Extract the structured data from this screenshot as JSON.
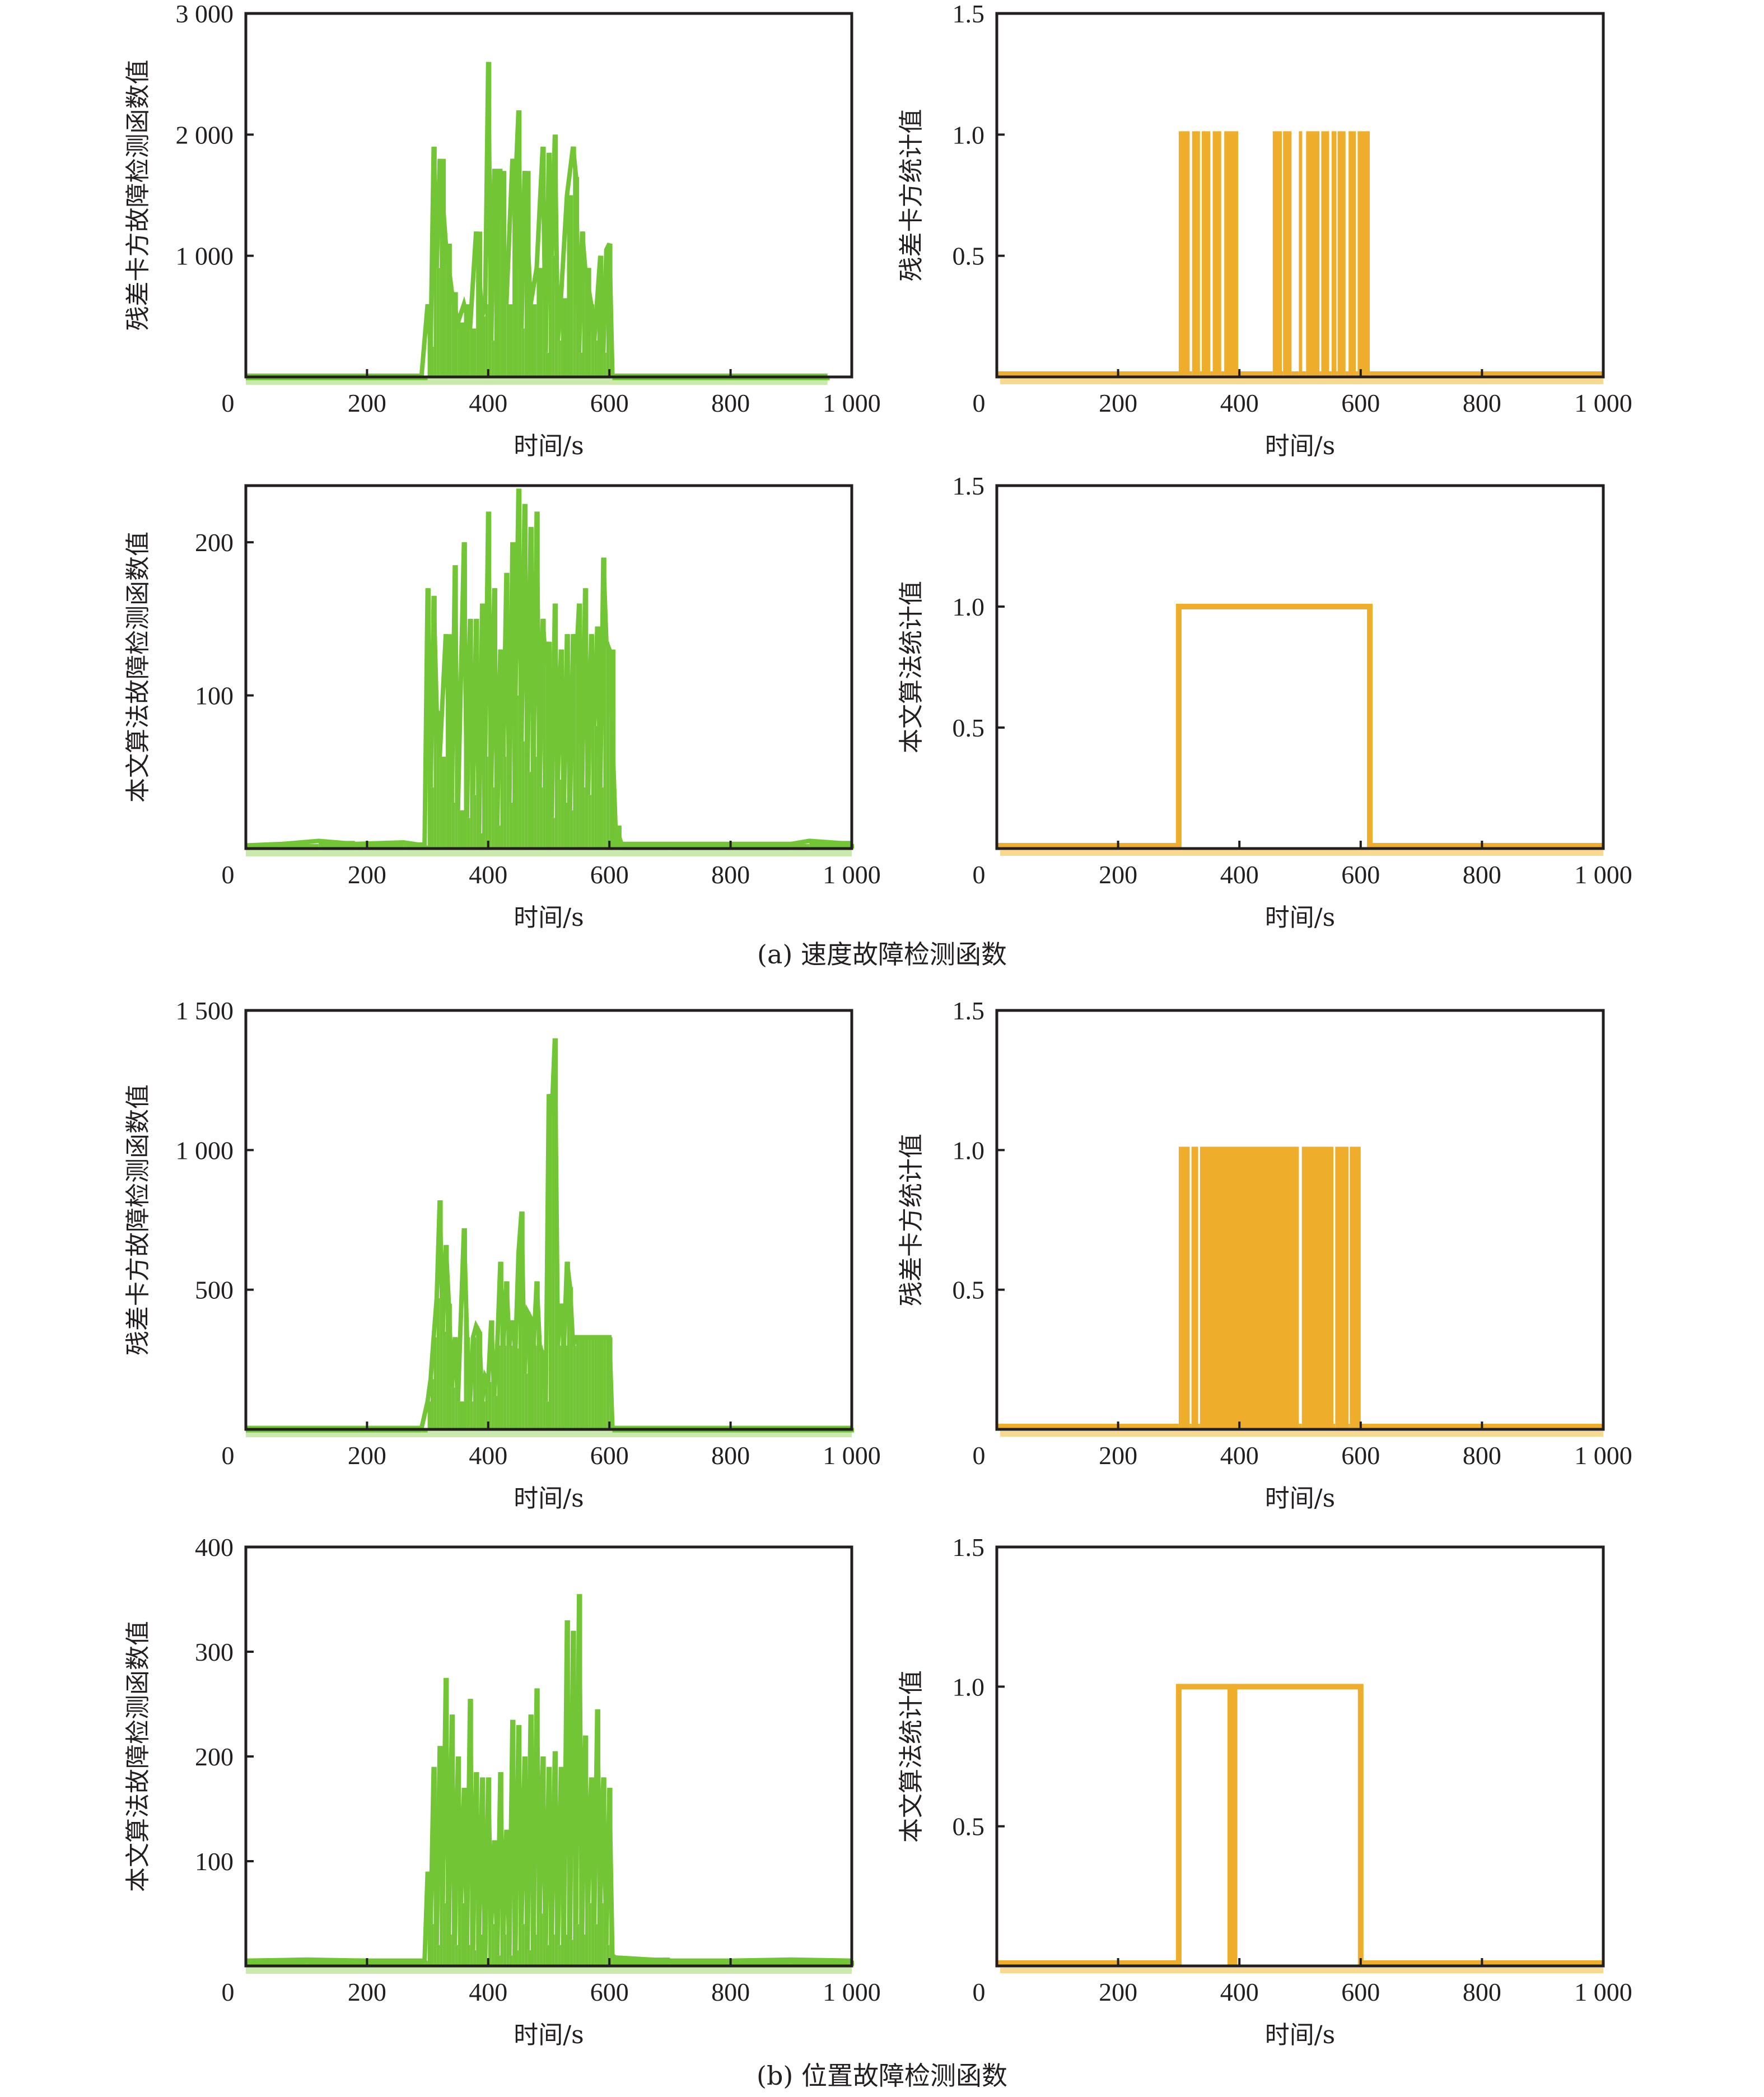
{
  "figure": {
    "captions": [
      "(a) 速度故障检测函数",
      "(b) 位置故障检测函数"
    ],
    "colors": {
      "green": "#72c534",
      "green_light": "#c9e9ad",
      "orange": "#eeae2b",
      "orange_light": "#f8d98e",
      "axis": "#231f20"
    }
  },
  "chart_data": [
    {
      "id": "a-chi2-func",
      "group": "(a) 速度故障检测函数",
      "type": "line",
      "title": "",
      "xlabel": "时间/s",
      "ylabel": "残差卡方故障检测函数值",
      "xlim": [
        0,
        1000
      ],
      "ylim": [
        0,
        3000
      ],
      "xticks": [
        0,
        200,
        400,
        600,
        800,
        1000
      ],
      "xtick_labels": [
        "0",
        "200",
        "400",
        "600",
        "800",
        "1 000"
      ],
      "yticks": [
        0,
        1000,
        2000,
        3000
      ],
      "ytick_labels": [
        "0",
        "1 000",
        "2 000",
        "3 000"
      ],
      "color": "#72c534",
      "grid": false,
      "legend": "none",
      "series": [
        {
          "name": "残差卡方故障检测函数值",
          "x": [
            0,
            290,
            300,
            305,
            310,
            315,
            320,
            330,
            340,
            350,
            360,
            370,
            380,
            390,
            395,
            400,
            405,
            410,
            420,
            430,
            440,
            445,
            450,
            455,
            460,
            470,
            480,
            490,
            495,
            500,
            505,
            510,
            515,
            520,
            530,
            540,
            545,
            550,
            555,
            560,
            570,
            575,
            580,
            585,
            590,
            595,
            600,
            605,
            610,
            960
          ],
          "y": [
            10,
            10,
            600,
            250,
            1900,
            900,
            1800,
            1100,
            700,
            450,
            600,
            400,
            1200,
            500,
            600,
            2600,
            300,
            1700,
            1700,
            600,
            1800,
            1600,
            2200,
            400,
            1700,
            600,
            900,
            1900,
            200,
            1850,
            1000,
            2000,
            300,
            650,
            1500,
            1900,
            1650,
            200,
            1200,
            900,
            600,
            300,
            650,
            1000,
            200,
            1050,
            1100,
            10,
            10,
            10
          ]
        }
      ]
    },
    {
      "id": "a-chi2-stat",
      "group": "(a) 速度故障检测函数",
      "type": "line",
      "title": "",
      "xlabel": "时间/s",
      "ylabel": "残差卡方统计值",
      "xlim": [
        0,
        1000
      ],
      "ylim": [
        0,
        1.5
      ],
      "xticks": [
        0,
        200,
        400,
        600,
        800,
        1000
      ],
      "xtick_labels": [
        "0",
        "200",
        "400",
        "600",
        "800",
        "1 000"
      ],
      "yticks": [
        0.5,
        1.0,
        1.5
      ],
      "ytick_labels": [
        "0.5",
        "1.0",
        "1.5"
      ],
      "color": "#eeae2b",
      "grid": false,
      "legend": "none",
      "alarm_intervals": [
        [
          300,
          318
        ],
        [
          322,
          335
        ],
        [
          338,
          352
        ],
        [
          356,
          370
        ],
        [
          375,
          398
        ],
        [
          455,
          470
        ],
        [
          472,
          486
        ],
        [
          498,
          500
        ],
        [
          510,
          532
        ],
        [
          535,
          548
        ],
        [
          552,
          560
        ],
        [
          562,
          575
        ],
        [
          580,
          592
        ],
        [
          595,
          615
        ]
      ],
      "series": [
        {
          "name": "残差卡方统计值",
          "baseline": 0,
          "alarm_value": 1.0
        }
      ]
    },
    {
      "id": "a-proposed-func",
      "group": "(a) 速度故障检测函数",
      "type": "line",
      "title": "",
      "xlabel": "时间/s",
      "ylabel": "本文算法故障检测函数值",
      "xlim": [
        0,
        1000
      ],
      "ylim": [
        0,
        237
      ],
      "xticks": [
        0,
        200,
        400,
        600,
        800,
        1000
      ],
      "xtick_labels": [
        "0",
        "200",
        "400",
        "600",
        "800",
        "1 000"
      ],
      "yticks": [
        100,
        200
      ],
      "ytick_labels": [
        "100",
        "200"
      ],
      "color": "#72c534",
      "grid": false,
      "legend": "none",
      "series": [
        {
          "name": "本文算法故障检测函数值",
          "x": [
            0,
            60,
            120,
            180,
            260,
            295,
            300,
            305,
            310,
            315,
            320,
            330,
            340,
            345,
            350,
            360,
            365,
            370,
            375,
            380,
            385,
            390,
            395,
            400,
            405,
            410,
            415,
            420,
            425,
            430,
            435,
            440,
            445,
            450,
            455,
            460,
            465,
            470,
            475,
            480,
            485,
            490,
            495,
            500,
            505,
            510,
            515,
            520,
            525,
            530,
            535,
            540,
            545,
            550,
            555,
            560,
            565,
            570,
            575,
            580,
            585,
            590,
            595,
            600,
            610,
            620,
            700,
            800,
            900,
            930,
            1000
          ],
          "y": [
            2,
            3,
            5,
            3,
            4,
            2,
            170,
            40,
            165,
            90,
            60,
            140,
            30,
            185,
            25,
            200,
            20,
            150,
            35,
            150,
            10,
            160,
            60,
            220,
            40,
            170,
            15,
            130,
            60,
            180,
            30,
            200,
            100,
            235,
            70,
            225,
            50,
            210,
            60,
            220,
            40,
            150,
            120,
            135,
            20,
            160,
            45,
            130,
            30,
            140,
            25,
            140,
            120,
            160,
            40,
            170,
            35,
            140,
            80,
            145,
            40,
            190,
            135,
            130,
            15,
            3,
            3,
            3,
            3,
            5,
            3
          ]
        }
      ]
    },
    {
      "id": "a-proposed-stat",
      "group": "(a) 速度故障检测函数",
      "type": "line",
      "title": "",
      "xlabel": "时间/s",
      "ylabel": "本文算法统计值",
      "xlim": [
        0,
        1000
      ],
      "ylim": [
        0,
        1.5
      ],
      "xticks": [
        0,
        200,
        400,
        600,
        800,
        1000
      ],
      "xtick_labels": [
        "0",
        "200",
        "400",
        "600",
        "800",
        "1 000"
      ],
      "yticks": [
        0.5,
        1.0,
        1.5
      ],
      "ytick_labels": [
        "0.5",
        "1.0",
        "1.5"
      ],
      "color": "#eeae2b",
      "grid": false,
      "legend": "none",
      "alarm_intervals": [
        [
          300,
          615
        ]
      ],
      "series": [
        {
          "name": "本文算法统计值",
          "baseline": 0,
          "alarm_value": 1.0
        }
      ]
    },
    {
      "id": "b-chi2-func",
      "group": "(b) 位置故障检测函数",
      "type": "line",
      "title": "",
      "xlabel": "时间/s",
      "ylabel": "残差卡方故障检测函数值",
      "xlim": [
        0,
        1000
      ],
      "ylim": [
        0,
        1500
      ],
      "xticks": [
        0,
        200,
        400,
        600,
        800,
        1000
      ],
      "xtick_labels": [
        "0",
        "200",
        "400",
        "600",
        "800",
        "1 000"
      ],
      "yticks": [
        0,
        500,
        1000,
        1500
      ],
      "ytick_labels": [
        "0",
        "500",
        "1 000",
        "1 500"
      ],
      "color": "#72c534",
      "grid": false,
      "legend": "none",
      "series": [
        {
          "name": "残差卡方故障检测函数值",
          "x": [
            0,
            290,
            300,
            305,
            310,
            315,
            320,
            325,
            330,
            335,
            340,
            345,
            350,
            360,
            365,
            370,
            375,
            380,
            385,
            390,
            395,
            400,
            405,
            410,
            415,
            420,
            425,
            430,
            435,
            440,
            445,
            450,
            455,
            460,
            465,
            470,
            475,
            480,
            485,
            490,
            495,
            500,
            505,
            510,
            515,
            520,
            525,
            530,
            535,
            540,
            545,
            550,
            555,
            560,
            565,
            570,
            575,
            580,
            585,
            590,
            595,
            600,
            605,
            1000
          ],
          "y": [
            5,
            5,
            100,
            180,
            330,
            470,
            820,
            350,
            660,
            450,
            150,
            330,
            100,
            720,
            330,
            100,
            330,
            370,
            350,
            100,
            190,
            170,
            390,
            120,
            300,
            600,
            300,
            530,
            300,
            390,
            290,
            630,
            780,
            200,
            420,
            400,
            300,
            530,
            300,
            270,
            100,
            1200,
            1130,
            1400,
            300,
            450,
            300,
            600,
            510,
            300,
            330,
            330,
            330,
            330,
            330,
            330,
            330,
            330,
            330,
            330,
            330,
            330,
            5,
            5
          ]
        }
      ]
    },
    {
      "id": "b-chi2-stat",
      "group": "(b) 位置故障检测函数",
      "type": "line",
      "title": "",
      "xlabel": "时间/s",
      "ylabel": "残差卡方统计值",
      "xlim": [
        0,
        1000
      ],
      "ylim": [
        0,
        1.5
      ],
      "xticks": [
        0,
        200,
        400,
        600,
        800,
        1000
      ],
      "xtick_labels": [
        "0",
        "200",
        "400",
        "600",
        "800",
        "1 000"
      ],
      "yticks": [
        0.5,
        1.0,
        1.5
      ],
      "ytick_labels": [
        "0.5",
        "1.0",
        "1.5"
      ],
      "color": "#eeae2b",
      "grid": false,
      "legend": "none",
      "alarm_intervals": [
        [
          300,
          318
        ],
        [
          321,
          332
        ],
        [
          335,
          498
        ],
        [
          503,
          555
        ],
        [
          558,
          580
        ],
        [
          582,
          600
        ]
      ],
      "series": [
        {
          "name": "残差卡方统计值",
          "baseline": 0,
          "alarm_value": 1.0
        }
      ]
    },
    {
      "id": "b-proposed-func",
      "group": "(b) 位置故障检测函数",
      "type": "line",
      "title": "",
      "xlabel": "时间/s",
      "ylabel": "本文算法故障检测函数值",
      "xlim": [
        0,
        1000
      ],
      "ylim": [
        0,
        400
      ],
      "xticks": [
        0,
        200,
        400,
        600,
        800,
        1000
      ],
      "xtick_labels": [
        "0",
        "200",
        "400",
        "600",
        "800",
        "1 000"
      ],
      "yticks": [
        100,
        200,
        300,
        400
      ],
      "ytick_labels": [
        "100",
        "200",
        "300",
        "400"
      ],
      "color": "#72c534",
      "grid": false,
      "legend": "none",
      "series": [
        {
          "name": "本文算法故障检测函数值",
          "x": [
            0,
            100,
            200,
            295,
            300,
            305,
            310,
            315,
            320,
            325,
            330,
            335,
            340,
            345,
            350,
            355,
            360,
            365,
            370,
            375,
            380,
            385,
            390,
            395,
            400,
            405,
            410,
            415,
            420,
            425,
            430,
            435,
            440,
            445,
            450,
            455,
            460,
            465,
            470,
            475,
            480,
            485,
            490,
            495,
            500,
            505,
            510,
            515,
            520,
            525,
            530,
            535,
            540,
            545,
            550,
            555,
            560,
            565,
            570,
            575,
            580,
            585,
            590,
            595,
            600,
            605,
            610,
            700,
            800,
            900,
            1000
          ],
          "y": [
            5,
            6,
            5,
            5,
            90,
            40,
            190,
            20,
            210,
            60,
            275,
            30,
            240,
            20,
            200,
            60,
            170,
            20,
            255,
            15,
            185,
            30,
            180,
            5,
            180,
            40,
            120,
            10,
            185,
            30,
            130,
            10,
            235,
            15,
            230,
            40,
            200,
            15,
            240,
            30,
            265,
            50,
            200,
            20,
            190,
            30,
            205,
            20,
            190,
            30,
            330,
            25,
            320,
            40,
            355,
            30,
            220,
            60,
            180,
            40,
            245,
            60,
            180,
            20,
            170,
            10,
            8,
            5,
            5,
            6,
            5
          ]
        }
      ]
    },
    {
      "id": "b-proposed-stat",
      "group": "(b) 位置故障检测函数",
      "type": "line",
      "title": "",
      "xlabel": "时间/s",
      "ylabel": "本文算法统计值",
      "xlim": [
        0,
        1000
      ],
      "ylim": [
        0,
        1.5
      ],
      "xticks": [
        0,
        200,
        400,
        600,
        800,
        1000
      ],
      "xtick_labels": [
        "0",
        "200",
        "400",
        "600",
        "800",
        "1 000"
      ],
      "yticks": [
        0.5,
        1.0,
        1.5
      ],
      "ytick_labels": [
        "0.5",
        "1.0",
        "1.5"
      ],
      "color": "#eeae2b",
      "grid": false,
      "legend": "none",
      "alarm_intervals": [
        [
          300,
          385
        ],
        [
          392,
          600
        ]
      ],
      "series": [
        {
          "name": "本文算法统计值",
          "baseline": 0,
          "alarm_value": 1.0
        }
      ]
    }
  ]
}
